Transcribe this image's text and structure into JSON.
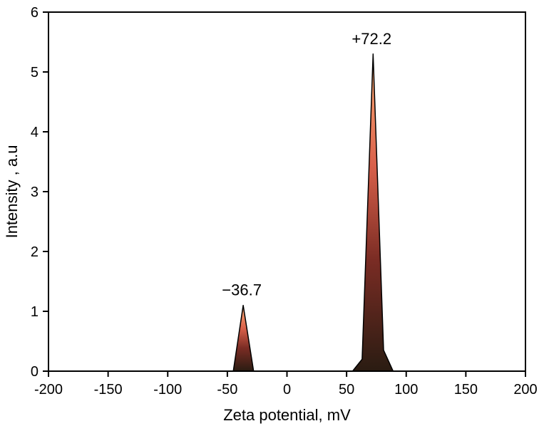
{
  "chart_data": {
    "type": "area",
    "xlabel": "Zeta potential, mV",
    "ylabel": "Intensity , a.u",
    "xlim": [
      -200,
      200
    ],
    "ylim": [
      0,
      6
    ],
    "xticks": [
      -200,
      -150,
      -100,
      -50,
      0,
      50,
      100,
      150,
      200
    ],
    "yticks": [
      0,
      1,
      2,
      3,
      4,
      5,
      6
    ],
    "grid": false,
    "series": [
      {
        "points": [
          [
            -45,
            0
          ],
          [
            -36.7,
            1.1
          ],
          [
            -28,
            0
          ]
        ],
        "peak_label": "−36.7",
        "peak": [
          -36.7,
          1.1
        ]
      },
      {
        "points": [
          [
            55,
            0
          ],
          [
            63,
            0.2
          ],
          [
            72.2,
            5.3
          ],
          [
            81,
            0.35
          ],
          [
            89,
            0
          ]
        ],
        "peak_label": "+72.2",
        "peak": [
          72.2,
          5.3
        ]
      }
    ],
    "colors": {
      "fill_top": "#ffb27a",
      "fill_mid": "#d9604a",
      "fill_low": "#7a2c24",
      "fill_bottom": "#2a1c12"
    }
  }
}
